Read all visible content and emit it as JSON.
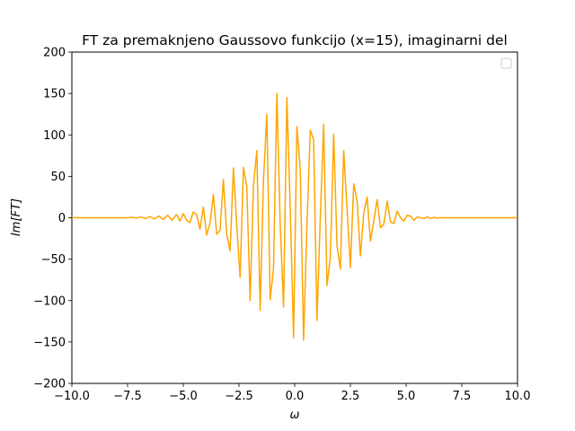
{
  "chart_data": {
    "type": "line",
    "title": "FT za premaknjeno Gaussovo funkcijo (x=15), imaginarni del",
    "xlabel": "ω",
    "ylabel": "Im[FT]",
    "xlim": [
      -10,
      10
    ],
    "ylim": [
      -200,
      200
    ],
    "xticks": [
      -10,
      -7.5,
      -5,
      -2.5,
      0,
      2.5,
      5,
      7.5,
      10
    ],
    "xtick_labels": [
      "−10.0",
      "−7.5",
      "−5.0",
      "−2.5",
      "0.0",
      "2.5",
      "5.0",
      "7.5",
      "10.0"
    ],
    "yticks": [
      -200,
      -150,
      -100,
      -50,
      0,
      50,
      100,
      150,
      200
    ],
    "ytick_labels": [
      "−200",
      "−150",
      "−100",
      "−50",
      "0",
      "50",
      "100",
      "150",
      "200"
    ],
    "grid": false,
    "legend": {
      "position": "upper right",
      "entries": []
    },
    "series": [
      {
        "color": "#ffa500",
        "x": [
          -10.0,
          -9.0,
          -8.0,
          -7.5,
          -7.3,
          -7.1,
          -6.9,
          -6.7,
          -6.5,
          -6.3,
          -6.1,
          -5.9,
          -5.7,
          -5.5,
          -5.3,
          -5.15,
          -5.0,
          -4.85,
          -4.7,
          -4.55,
          -4.4,
          -4.25,
          -4.1,
          -3.95,
          -3.8,
          -3.65,
          -3.5,
          -3.35,
          -3.2,
          -3.05,
          -2.9,
          -2.75,
          -2.6,
          -2.45,
          -2.3,
          -2.15,
          -2.0,
          -1.85,
          -1.7,
          -1.55,
          -1.4,
          -1.25,
          -1.1,
          -0.95,
          -0.8,
          -0.65,
          -0.5,
          -0.35,
          -0.2,
          -0.05,
          0.1,
          0.25,
          0.4,
          0.55,
          0.7,
          0.85,
          1.0,
          1.15,
          1.3,
          1.45,
          1.6,
          1.75,
          1.9,
          2.05,
          2.2,
          2.35,
          2.5,
          2.65,
          2.8,
          2.95,
          3.1,
          3.25,
          3.4,
          3.55,
          3.7,
          3.85,
          4.0,
          4.15,
          4.3,
          4.45,
          4.6,
          4.75,
          4.9,
          5.05,
          5.2,
          5.35,
          5.5,
          5.65,
          5.8,
          5.95,
          6.1,
          6.25,
          6.4,
          6.55,
          6.7,
          6.85,
          7.0,
          7.3,
          7.6,
          8.0,
          9.0,
          10.0
        ],
        "y": [
          0,
          0,
          0,
          0,
          0.5,
          -0.5,
          1,
          -1,
          1.5,
          -1.5,
          2,
          -2,
          3,
          -3,
          4,
          -4,
          5,
          -3,
          -6,
          7,
          4,
          -14,
          13,
          -21,
          -6,
          28,
          -20,
          -15,
          46,
          -20,
          -40,
          60,
          -9,
          -72,
          61,
          38,
          -100,
          39,
          81,
          -112,
          46,
          125,
          -99,
          -61,
          150,
          -8,
          -108,
          145,
          12,
          -145,
          110,
          58,
          -148,
          -9,
          106,
          94,
          -124,
          0,
          113,
          -82,
          -48,
          101,
          -34,
          -62,
          81,
          11,
          -60,
          41,
          21,
          -46,
          6,
          25,
          -28,
          -4,
          22,
          -12,
          -8,
          20,
          -5,
          -7,
          8,
          0,
          -4,
          3,
          2,
          -3,
          1,
          0,
          -1,
          1,
          -1,
          0.5,
          -0.5,
          0,
          0,
          0,
          0,
          0,
          0,
          0,
          0,
          0
        ]
      }
    ]
  }
}
